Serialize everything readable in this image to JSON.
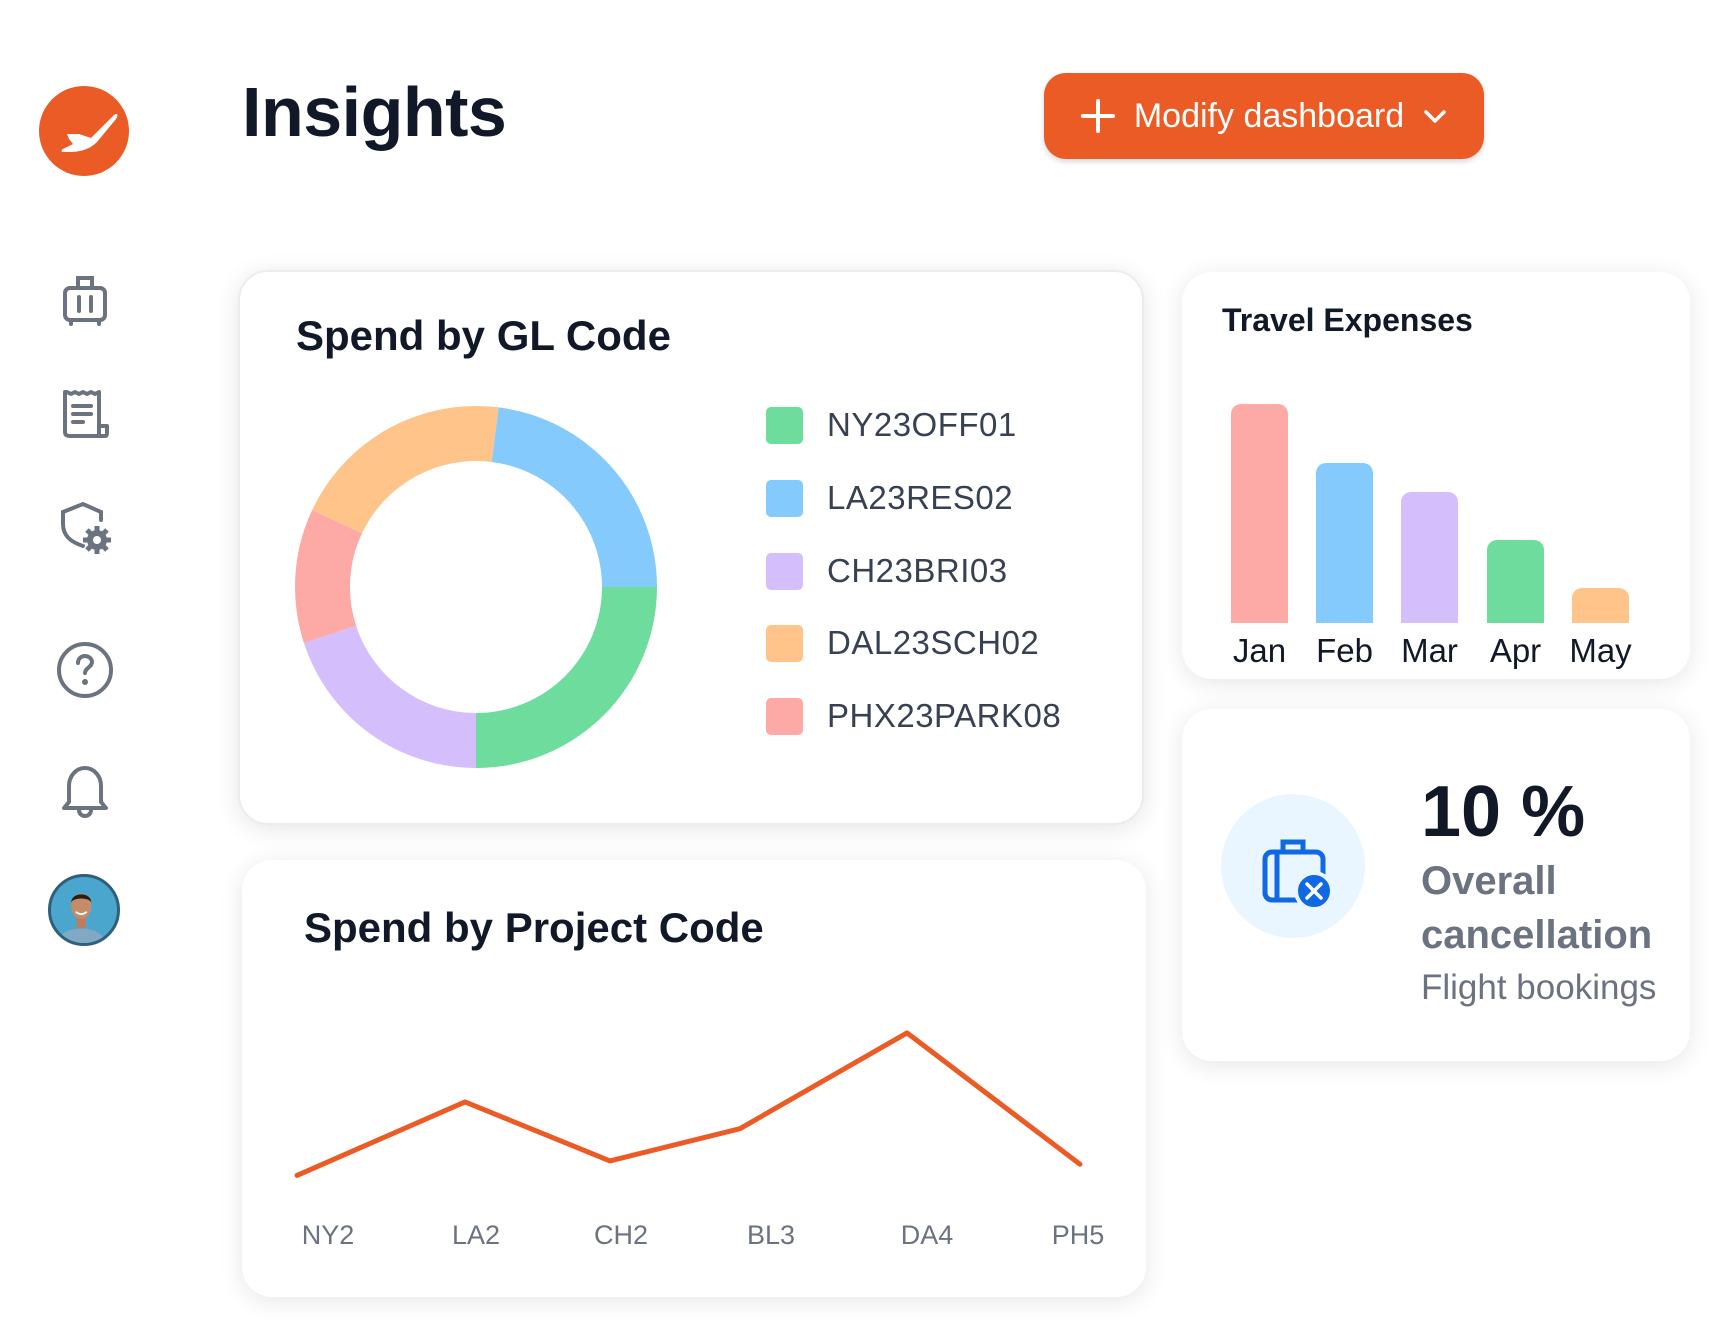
{
  "header": {
    "title": "Insights",
    "modify_button": "Modify dashboard"
  },
  "sidebar": {
    "items": [
      {
        "name": "trips",
        "icon": "luggage-icon"
      },
      {
        "name": "expenses",
        "icon": "receipt-icon"
      },
      {
        "name": "policy-settings",
        "icon": "shield-gear-icon"
      },
      {
        "name": "help",
        "icon": "help-icon"
      },
      {
        "name": "notifications",
        "icon": "bell-icon"
      },
      {
        "name": "profile",
        "icon": "avatar"
      }
    ]
  },
  "colors": {
    "accent": "#EB5B25",
    "text": "#111827",
    "muted": "#6B7280"
  },
  "chart_data": [
    {
      "type": "pie",
      "title": "Spend by GL Code",
      "donut": true,
      "categories": [
        "NY23OFF01",
        "LA23RES02",
        "CH23BRI03",
        "DAL23SCH02",
        "PHX23PARK08"
      ],
      "values": [
        25,
        23,
        20,
        20,
        12
      ],
      "colors": [
        "#6EDC9C",
        "#85CAFD",
        "#D4BFFC",
        "#FFC48A",
        "#FDA9A6"
      ],
      "draw_order": [
        0,
        2,
        4,
        3,
        1
      ],
      "legend": "right"
    },
    {
      "type": "bar",
      "title": "Travel Expenses",
      "categories": [
        "Jan",
        "Feb",
        "Mar",
        "Apr",
        "May"
      ],
      "values": [
        100,
        73,
        60,
        38,
        16
      ],
      "colors": [
        "#FDA9A6",
        "#85CAFD",
        "#D4BFFC",
        "#6EDC9C",
        "#FFC48A"
      ],
      "ylim": [
        0,
        100
      ]
    },
    {
      "type": "line",
      "title": "Spend by Project Code",
      "categories": [
        "NY2",
        "LA2",
        "CH2",
        "BL3",
        "DA4",
        "PH5"
      ],
      "values": [
        14,
        80,
        27,
        56,
        142,
        24
      ],
      "ylim": [
        0,
        150
      ],
      "color": "#EB5B25"
    }
  ],
  "cancellation": {
    "value": "10 %",
    "label_line1": "Overall",
    "label_line2": "cancellation",
    "sublabel": "Flight bookings"
  }
}
